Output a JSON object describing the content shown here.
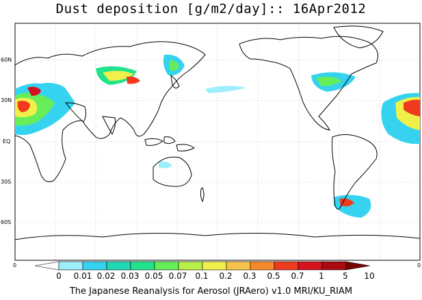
{
  "title": "Dust deposition [g/m2/day]:: 16Apr2012",
  "latitude_labels": [
    "60N",
    "30N",
    "EQ",
    "30S",
    "60S"
  ],
  "axis_edge_labels": {
    "left": "0",
    "right": "0"
  },
  "colorbar": {
    "labels": [
      "0",
      "0.01",
      "0.02",
      "0.03",
      "0.05",
      "0.07",
      "0.1",
      "0.2",
      "0.3",
      "0.5",
      "0.7",
      "1",
      "5",
      "10"
    ],
    "colors": [
      "#ffffff",
      "#9eeefd",
      "#35d3f0",
      "#1ed9b4",
      "#21e38d",
      "#66ee5a",
      "#b8f04a",
      "#f0f04a",
      "#f5c24a",
      "#f58a2a",
      "#f03a1e",
      "#d6121e",
      "#a80a10",
      "#7a0000"
    ]
  },
  "footer": "The Japanese Reanalysis for Aerosol (JRAero) v1.0 MRI/KU_RIAM"
}
